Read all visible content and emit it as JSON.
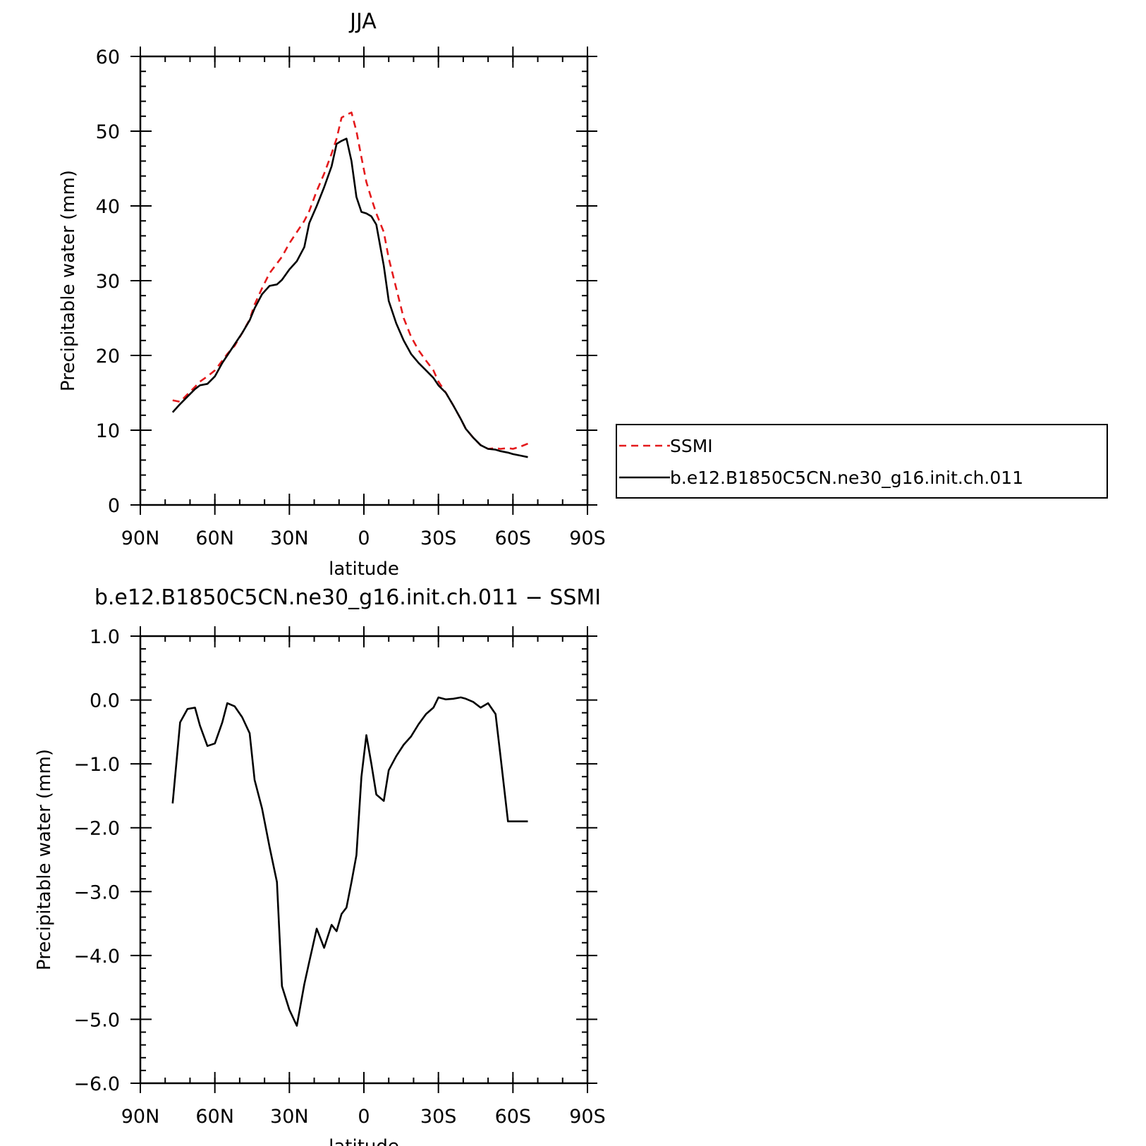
{
  "chart_data": [
    {
      "type": "line",
      "title": "JJA",
      "xlabel": "latitude",
      "ylabel": "Precipitable water (mm)",
      "xlim": [
        90,
        -90
      ],
      "ylim": [
        0,
        60
      ],
      "x_ticks": [
        90,
        60,
        30,
        0,
        -30,
        -60,
        -90
      ],
      "x_tick_labels": [
        "90N",
        "60N",
        "30N",
        "0",
        "30S",
        "60S",
        "90S"
      ],
      "y_ticks": [
        0,
        10,
        20,
        30,
        40,
        50,
        60
      ],
      "y_tick_labels": [
        "0",
        "10",
        "20",
        "30",
        "40",
        "50",
        "60"
      ],
      "legend": "right",
      "series": [
        {
          "name": "SSMI",
          "color": "#e41a1c",
          "dash": "dashed",
          "x": [
            77,
            74,
            71,
            68,
            66,
            63,
            60,
            57,
            55,
            52,
            49,
            46,
            44,
            41,
            38,
            35,
            33,
            30,
            27,
            24,
            22,
            19,
            16,
            13,
            11,
            9,
            7,
            5,
            3,
            1,
            -1,
            -3,
            -5,
            -8,
            -10,
            -13,
            -16,
            -19,
            -22,
            -25,
            -28,
            -30,
            -33,
            -36,
            -39,
            -41,
            -44,
            -47,
            -50,
            -53,
            -55,
            -58,
            -60,
            -63,
            -66
          ],
          "y": [
            14.0,
            13.8,
            14.8,
            15.8,
            16.5,
            17.2,
            18.0,
            19.3,
            20.2,
            21.3,
            23.0,
            24.8,
            26.8,
            29.0,
            31.0,
            32.3,
            33.2,
            35.0,
            36.5,
            38.0,
            39.3,
            42.0,
            44.3,
            47.0,
            49.0,
            51.8,
            52.2,
            52.5,
            50.0,
            46.5,
            43.2,
            41.0,
            39.0,
            36.5,
            33.0,
            29.0,
            25.0,
            22.5,
            20.7,
            19.3,
            18.0,
            16.5,
            15.0,
            13.3,
            11.5,
            10.2,
            9.0,
            8.0,
            7.5,
            7.6,
            7.5,
            7.6,
            7.5,
            7.8,
            8.2
          ]
        },
        {
          "name": "b.e12.B1850C5CN.ne30_g16.init.ch.011",
          "color": "#000000",
          "dash": "solid",
          "x": [
            77,
            74,
            71,
            68,
            66,
            63,
            60,
            57,
            55,
            52,
            49,
            46,
            44,
            41,
            38,
            35,
            33,
            30,
            27,
            24,
            22,
            19,
            16,
            13,
            11,
            9,
            7,
            5,
            3,
            1,
            -1,
            -3,
            -5,
            -8,
            -10,
            -13,
            -16,
            -19,
            -22,
            -25,
            -28,
            -30,
            -33,
            -36,
            -39,
            -41,
            -44,
            -47,
            -50,
            -53,
            -55,
            -58,
            -60,
            -63,
            -66
          ],
          "y": [
            12.4,
            13.5,
            14.5,
            15.5,
            16.0,
            16.2,
            17.2,
            19.0,
            20.0,
            21.5,
            23.0,
            24.7,
            26.3,
            28.2,
            29.3,
            29.5,
            30.1,
            31.5,
            32.6,
            34.5,
            37.7,
            40.0,
            42.5,
            45.3,
            48.3,
            48.7,
            49.0,
            46.0,
            41.2,
            39.2,
            39.0,
            38.6,
            37.5,
            32.0,
            27.3,
            24.3,
            22.0,
            20.2,
            19.0,
            18.0,
            17.0,
            16.0,
            15.0,
            13.3,
            11.5,
            10.2,
            9.0,
            8.0,
            7.5,
            7.4,
            7.2,
            7.0,
            6.8,
            6.6,
            6.4
          ]
        }
      ]
    },
    {
      "type": "line",
      "title": "b.e12.B1850C5CN.ne30_g16.init.ch.011 − SSMI",
      "xlabel": "latitude",
      "ylabel": "Precipitable water (mm)",
      "xlim": [
        90,
        -90
      ],
      "ylim": [
        -6,
        1
      ],
      "x_ticks": [
        90,
        60,
        30,
        0,
        -30,
        -60,
        -90
      ],
      "x_tick_labels": [
        "90N",
        "60N",
        "30N",
        "0",
        "30S",
        "60S",
        "90S"
      ],
      "y_ticks": [
        1,
        0,
        -1,
        -2,
        -3,
        -4,
        -5,
        -6
      ],
      "y_tick_labels": [
        "1.0",
        "0.0",
        "−1.0",
        "−2.0",
        "−3.0",
        "−4.0",
        "−5.0",
        "−6.0"
      ],
      "series": [
        {
          "color": "#000000",
          "dash": "solid",
          "x": [
            77,
            74,
            71,
            68,
            66,
            63,
            60,
            57,
            55,
            52,
            49,
            46,
            44,
            41,
            38,
            35,
            33,
            30,
            27,
            24,
            22,
            19,
            16,
            13,
            11,
            9,
            7,
            5,
            3,
            1,
            -1,
            -3,
            -5,
            -8,
            -10,
            -13,
            -16,
            -19,
            -22,
            -25,
            -28,
            -30,
            -33,
            -36,
            -39,
            -41,
            -44,
            -47,
            -50,
            -53,
            -55,
            -58,
            -60,
            -63,
            -66
          ],
          "y": [
            -1.62,
            -0.35,
            -0.14,
            -0.12,
            -0.4,
            -0.72,
            -0.68,
            -0.35,
            -0.05,
            -0.1,
            -0.27,
            -0.52,
            -1.25,
            -1.7,
            -2.3,
            -2.85,
            -4.48,
            -4.85,
            -5.1,
            -4.45,
            -4.1,
            -3.58,
            -3.88,
            -3.52,
            -3.62,
            -3.35,
            -3.25,
            -2.85,
            -2.43,
            -1.2,
            -0.55,
            -1.0,
            -1.48,
            -1.58,
            -1.1,
            -0.88,
            -0.7,
            -0.57,
            -0.38,
            -0.22,
            -0.12,
            0.04,
            0.01,
            0.02,
            0.04,
            0.02,
            -0.03,
            -0.12,
            -0.05,
            -0.22,
            -0.88,
            -1.9,
            -1.9,
            -1.9,
            -1.9
          ]
        }
      ]
    }
  ],
  "legend": {
    "entries": [
      "SSMI",
      "b.e12.B1850C5CN.ne30_g16.init.ch.011"
    ]
  }
}
